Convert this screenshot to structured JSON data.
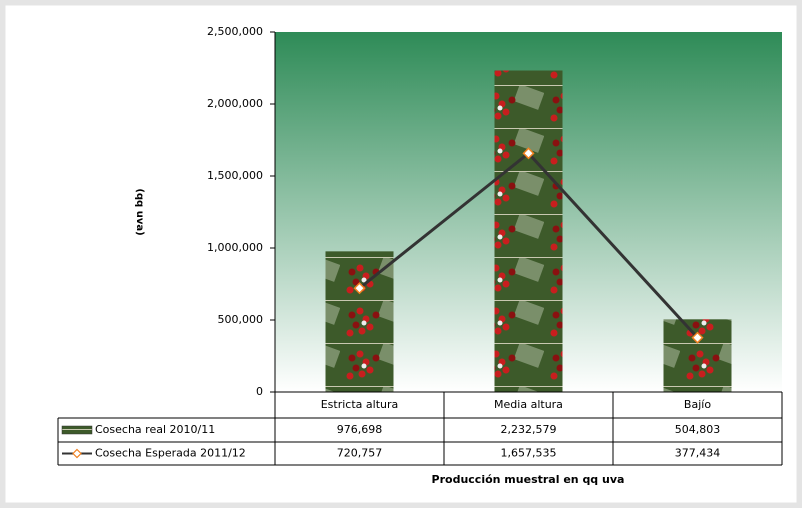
{
  "chart_data": {
    "type": "bar",
    "x_label": "Producción muestral en qq uva",
    "y_label": "(qq uva)",
    "categories": [
      "Estricta altura",
      "Media altura",
      "Bajío"
    ],
    "series": [
      {
        "name": "Cosecha real 2010/11",
        "type": "bar",
        "color": "#3d5a2a",
        "values": [
          976698,
          2232579,
          504803
        ],
        "value_labels": [
          "976,698",
          "2,232,579",
          "504,803"
        ]
      },
      {
        "name": "Cosecha Esperada 2011/12",
        "type": "line",
        "color": "#333333",
        "marker_color": "#f08020",
        "values": [
          720757,
          1657535,
          377434
        ],
        "value_labels": [
          "720,757",
          "1,657,535",
          "377,434"
        ]
      }
    ],
    "ylim": [
      0,
      2500000
    ],
    "yticks": [
      0,
      {
        "value": 500000,
        "label": "500,000"
      },
      {
        "value": 1000000,
        "label": "1,000,000"
      },
      {
        "value": 1500000,
        "label": "1,500,000"
      },
      {
        "value": 2000000,
        "label": "2,000,000"
      },
      {
        "value": 2500000,
        "label": "2,500,000"
      }
    ],
    "grid": false,
    "background_top": "#2e8b57"
  }
}
